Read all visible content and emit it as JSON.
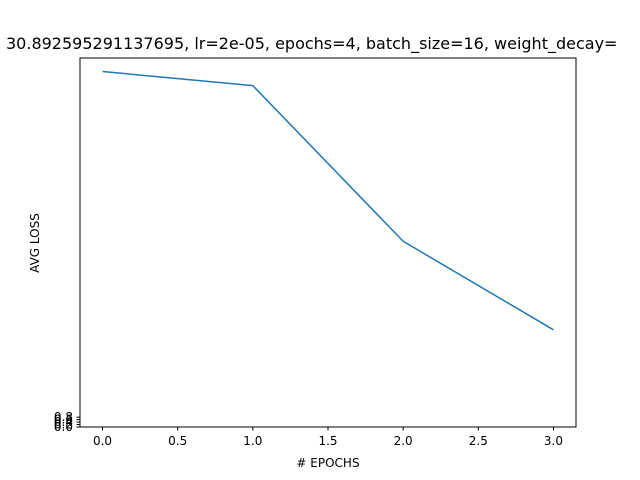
{
  "chart_data": {
    "type": "line",
    "title": "30.892595291137695, lr=2e-05, epochs=4, batch_size=16, weight_decay=",
    "xlabel": "# EPOCHS",
    "ylabel": "AVG LOSS",
    "xlim": [
      -0.15,
      3.15
    ],
    "xticks": [
      0.0,
      0.5,
      1.0,
      1.5,
      2.0,
      2.5,
      3.0
    ],
    "xtick_labels": [
      "0.0",
      "0.5",
      "1.0",
      "1.5",
      "2.0",
      "2.5",
      "3.0"
    ],
    "ylim": [
      0,
      30
    ],
    "yticks": [
      0.0,
      0.2,
      0.4,
      0.6,
      0.8
    ],
    "ytick_labels": [
      "0.0",
      "0.2",
      "0.4",
      "0.6",
      "0.8"
    ],
    "grid": false,
    "series": [
      {
        "color": "#1f77b4",
        "x": [
          0,
          1,
          2,
          3
        ],
        "y": [
          28.9,
          27.75,
          15.1,
          7.9
        ]
      }
    ]
  }
}
